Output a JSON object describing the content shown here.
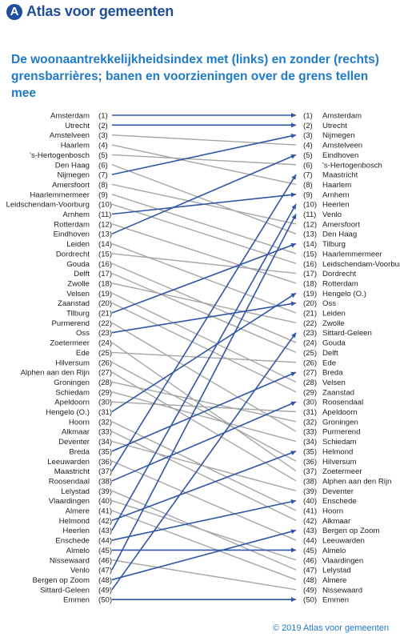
{
  "header": {
    "logo_icon": "atlas-logo-icon",
    "logo_mark": "A",
    "brand": "Atlas voor gemeenten",
    "brand_color": "#1f4e9c"
  },
  "title_color": "#1f7ac9",
  "highlight_color": "#2f56a6",
  "neutral_color": "#a6a6a6",
  "copyright": "© 2019 Atlas voor gemeenten",
  "chart_data": {
    "type": "slope",
    "title": "De woonaantrekkelijkheidsindex met (links) en zonder (rechts) grensbarrières; banen en voorzieningen over de grens tellen mee",
    "left": [
      "Amsterdam",
      "Utrecht",
      "Amstelveen",
      "Haarlem",
      "'s-Hertogenbosch",
      "Den Haag",
      "Nijmegen",
      "Amersfoort",
      "Haarlemmermeer",
      "Leidschendam-Voorburg",
      "Arnhem",
      "Rotterdam",
      "Eindhoven",
      "Leiden",
      "Dordrecht",
      "Gouda",
      "Delft",
      "Zwolle",
      "Velsen",
      "Zaanstad",
      "Tilburg",
      "Purmerend",
      "Oss",
      "Zoetermeer",
      "Ede",
      "Hilversum",
      "Alphen aan den Rijn",
      "Groningen",
      "Schiedam",
      "Apeldoorn",
      "Hengelo (O.)",
      "Hoorn",
      "Alkmaar",
      "Deventer",
      "Breda",
      "Leeuwarden",
      "Maastricht",
      "Roosendaal",
      "Lelystad",
      "Vlaardingen",
      "Almere",
      "Helmond",
      "Heerlen",
      "Enschede",
      "Almelo",
      "Nissewaard",
      "Venlo",
      "Bergen op Zoom",
      "Sittard-Geleen",
      "Emmen"
    ],
    "right": [
      "Amsterdam",
      "Utrecht",
      "Nijmegen",
      "Amstelveen",
      "Eindhoven",
      "'s-Hertogenbosch",
      "Maastricht",
      "Haarlem",
      "Arnhem",
      "Heerlen",
      "Venlo",
      "Amersfoort",
      "Den Haag",
      "Tilburg",
      "Haarlemmermeer",
      "Leidschendam-Voorburg",
      "Dordrecht",
      "Rotterdam",
      "Hengelo (O.)",
      "Oss",
      "Leiden",
      "Zwolle",
      "Sittard-Geleen",
      "Gouda",
      "Delft",
      "Ede",
      "Breda",
      "Velsen",
      "Zaanstad",
      "Roosendaal",
      "Apeldoorn",
      "Groningen",
      "Purmerend",
      "Schiedam",
      "Helmond",
      "Hilversum",
      "Zoetermeer",
      "Alphen aan den Rijn",
      "Deventer",
      "Enschede",
      "Hoorn",
      "Alkmaar",
      "Bergen op Zoom",
      "Leeuwarden",
      "Almelo",
      "Vlaardingen",
      "Lelystad",
      "Almere",
      "Nissewaard",
      "Emmen"
    ],
    "highlighted": [
      "Amsterdam",
      "Utrecht",
      "Nijmegen",
      "Eindhoven",
      "Maastricht",
      "Arnhem",
      "Heerlen",
      "Venlo",
      "Tilburg",
      "Hengelo (O.)",
      "Oss",
      "Sittard-Geleen",
      "Breda",
      "Roosendaal",
      "Helmond",
      "Enschede",
      "Bergen op Zoom",
      "Almelo",
      "Emmen"
    ]
  }
}
